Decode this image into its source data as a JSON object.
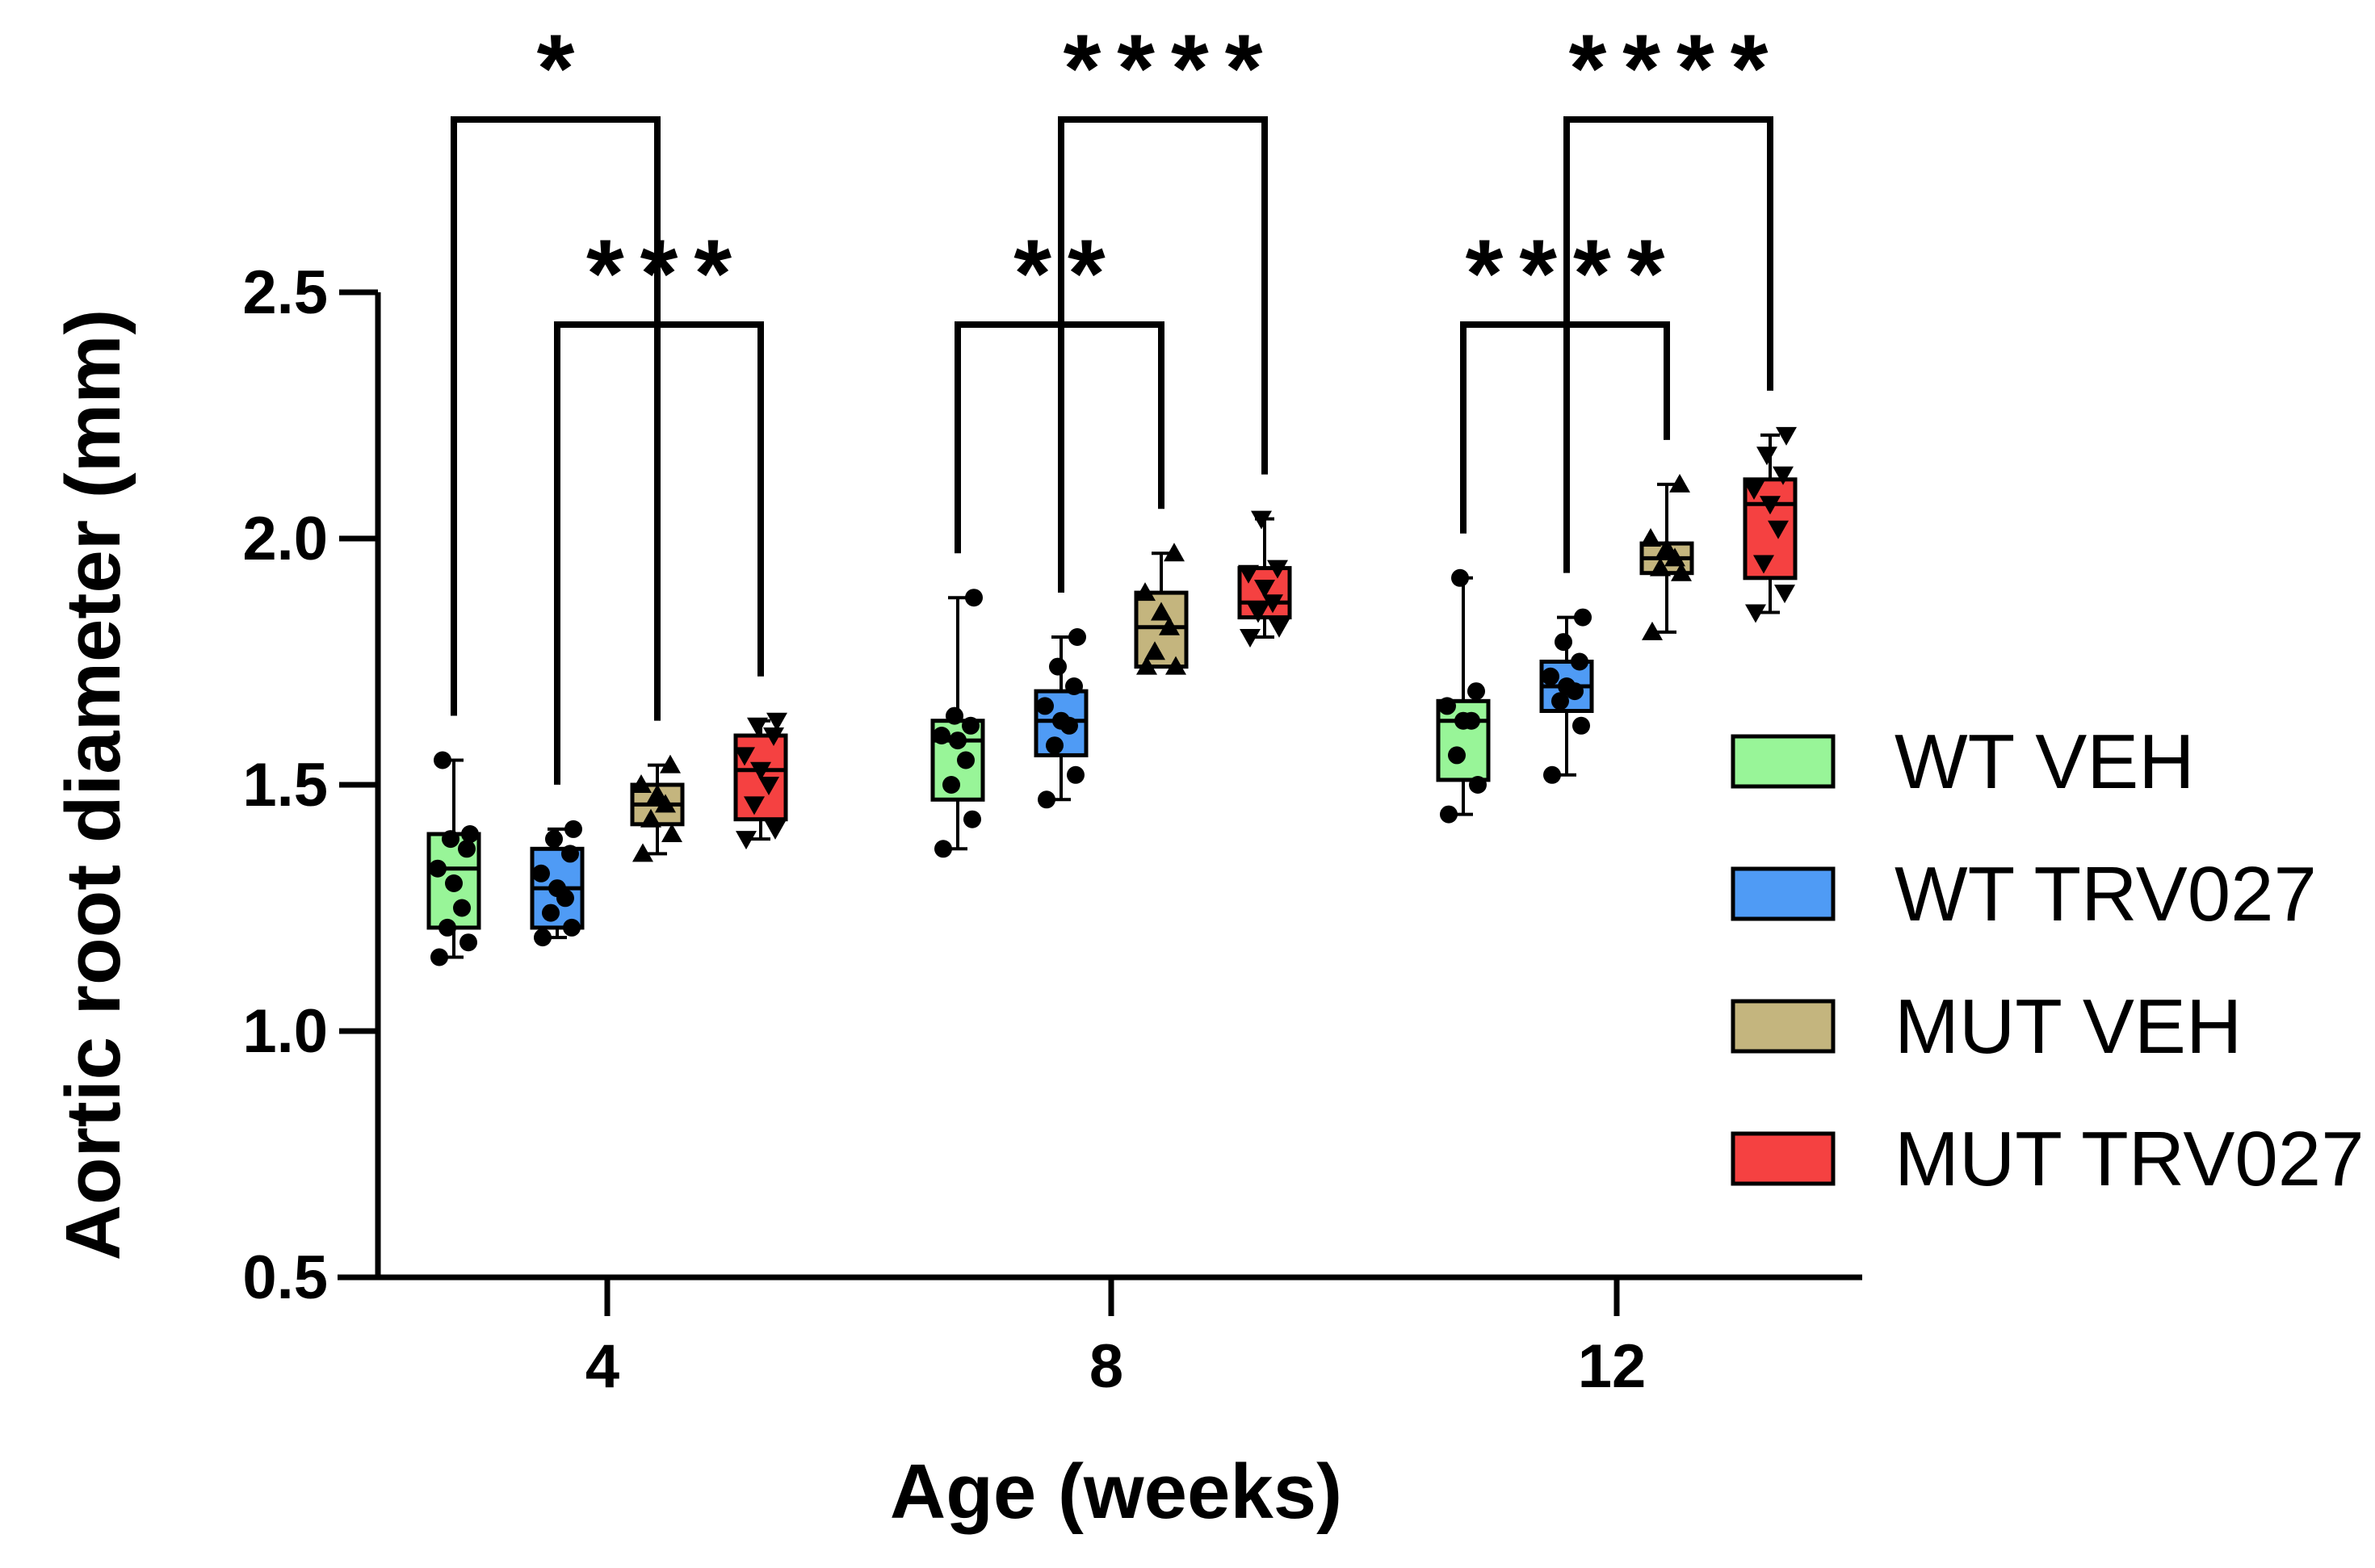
{
  "chart_data": {
    "type": "box",
    "title": "",
    "xlabel": "Age (weeks)",
    "ylabel": "Aortic root diameter (mm)",
    "ylim": [
      0.5,
      2.5
    ],
    "yticks": [
      "0.5",
      "1.0",
      "1.5",
      "2.0",
      "2.5"
    ],
    "categories": [
      "4",
      "8",
      "12"
    ],
    "legend_position": "right",
    "series": [
      {
        "name": "WT VEH",
        "color": "#98f598",
        "marker": "circle",
        "boxes": [
          {
            "min": 1.15,
            "q1": 1.21,
            "median": 1.33,
            "q3": 1.4,
            "max": 1.55,
            "points": [
              1.15,
              1.18,
              1.21,
              1.25,
              1.3,
              1.33,
              1.37,
              1.39,
              1.4,
              1.55
            ]
          },
          {
            "min": 1.37,
            "q1": 1.47,
            "median": 1.59,
            "q3": 1.63,
            "max": 1.88,
            "points": [
              1.37,
              1.43,
              1.5,
              1.55,
              1.59,
              1.6,
              1.62,
              1.64,
              1.88
            ]
          },
          {
            "min": 1.44,
            "q1": 1.51,
            "median": 1.63,
            "q3": 1.67,
            "max": 1.92,
            "points": [
              1.44,
              1.5,
              1.56,
              1.63,
              1.63,
              1.66,
              1.69,
              1.92
            ]
          }
        ]
      },
      {
        "name": "WT TRV027",
        "color": "#4f9bf5",
        "marker": "circle",
        "boxes": [
          {
            "min": 1.19,
            "q1": 1.21,
            "median": 1.29,
            "q3": 1.37,
            "max": 1.41,
            "points": [
              1.19,
              1.21,
              1.24,
              1.27,
              1.29,
              1.32,
              1.36,
              1.39,
              1.41
            ]
          },
          {
            "min": 1.47,
            "q1": 1.56,
            "median": 1.63,
            "q3": 1.69,
            "max": 1.8,
            "points": [
              1.47,
              1.52,
              1.58,
              1.62,
              1.63,
              1.66,
              1.7,
              1.74,
              1.8
            ]
          },
          {
            "min": 1.52,
            "q1": 1.65,
            "median": 1.7,
            "q3": 1.75,
            "max": 1.84,
            "points": [
              1.52,
              1.62,
              1.67,
              1.69,
              1.7,
              1.72,
              1.75,
              1.79,
              1.84
            ]
          }
        ]
      },
      {
        "name": "MUT VEH",
        "color": "#c4b57e",
        "marker": "triangle-up",
        "boxes": [
          {
            "min": 1.36,
            "q1": 1.42,
            "median": 1.46,
            "q3": 1.5,
            "max": 1.54,
            "points": [
              1.36,
              1.4,
              1.43,
              1.46,
              1.48,
              1.5,
              1.54
            ]
          },
          {
            "min": 1.74,
            "q1": 1.74,
            "median": 1.82,
            "q3": 1.89,
            "max": 1.97,
            "points": [
              1.74,
              1.74,
              1.77,
              1.82,
              1.85,
              1.89,
              1.97
            ]
          },
          {
            "min": 1.81,
            "q1": 1.93,
            "median": 1.96,
            "q3": 1.99,
            "max": 2.11,
            "points": [
              1.81,
              1.93,
              1.94,
              1.96,
              1.98,
              2.0,
              2.11
            ]
          }
        ]
      },
      {
        "name": "MUT TRV027",
        "color": "#f54141",
        "marker": "triangle-down",
        "boxes": [
          {
            "min": 1.39,
            "q1": 1.43,
            "median": 1.53,
            "q3": 1.6,
            "max": 1.63,
            "points": [
              1.39,
              1.41,
              1.46,
              1.5,
              1.53,
              1.56,
              1.6,
              1.62,
              1.63
            ]
          },
          {
            "min": 1.8,
            "q1": 1.84,
            "median": 1.87,
            "q3": 1.94,
            "max": 2.04,
            "points": [
              1.8,
              1.82,
              1.85,
              1.87,
              1.9,
              1.93,
              1.94,
              2.04
            ]
          },
          {
            "min": 1.85,
            "q1": 1.92,
            "median": 2.07,
            "q3": 2.12,
            "max": 2.21,
            "points": [
              1.85,
              1.89,
              1.95,
              2.02,
              2.07,
              2.1,
              2.13,
              2.17,
              2.21
            ]
          }
        ]
      }
    ],
    "significance": [
      {
        "group": "4",
        "from": "WT VEH",
        "to": "MUT VEH",
        "label": "*",
        "level": 2
      },
      {
        "group": "4",
        "from": "WT TRV027",
        "to": "MUT TRV027",
        "label": "***",
        "level": 1
      },
      {
        "group": "8",
        "from": "WT VEH",
        "to": "MUT VEH",
        "label": "**",
        "level": 1
      },
      {
        "group": "8",
        "from": "WT TRV027",
        "to": "MUT TRV027",
        "label": "****",
        "level": 2
      },
      {
        "group": "12",
        "from": "WT VEH",
        "to": "MUT VEH",
        "label": "****",
        "level": 1
      },
      {
        "group": "12",
        "from": "WT TRV027",
        "to": "MUT TRV027",
        "label": "****",
        "level": 2
      }
    ]
  }
}
